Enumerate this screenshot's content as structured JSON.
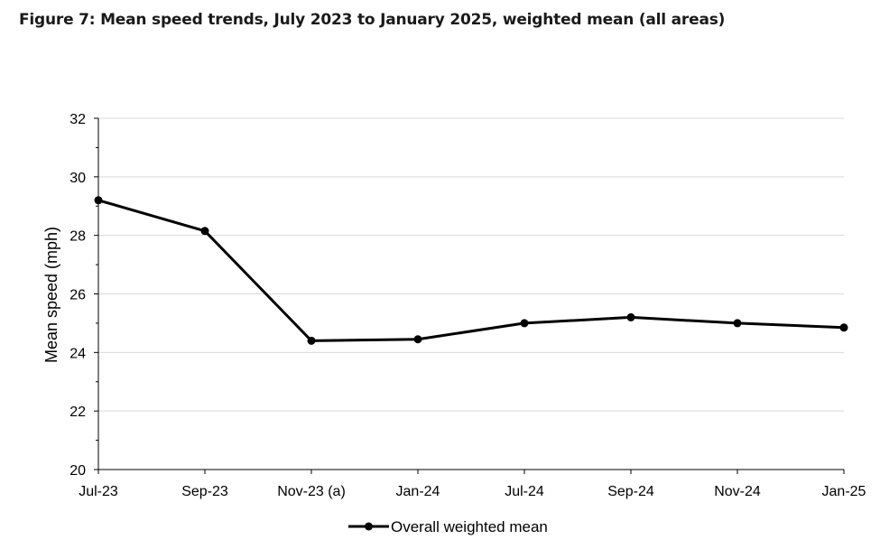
{
  "figure": {
    "title": "Figure 7: Mean speed trends, July 2023 to January 2025, weighted mean (all areas)"
  },
  "colors": {
    "series": "#000000",
    "gridline": "#d9d9d9",
    "axis": "#000000"
  },
  "chart_data": {
    "type": "line",
    "title": "",
    "xlabel": "",
    "ylabel": "Mean speed (mph)",
    "ylim": [
      20,
      32
    ],
    "yticks": [
      20,
      22,
      24,
      26,
      28,
      30,
      32
    ],
    "grid": true,
    "legend_position": "bottom-center",
    "categories": [
      "Jul-23",
      "Sep-23",
      "Nov-23 (a)",
      "Jan-24",
      "Jul-24",
      "Sep-24",
      "Nov-24",
      "Jan-25"
    ],
    "series": [
      {
        "name": "Overall weighted mean",
        "values": [
          29.2,
          28.15,
          24.4,
          24.45,
          25.0,
          25.2,
          25.0,
          24.85
        ]
      }
    ]
  }
}
